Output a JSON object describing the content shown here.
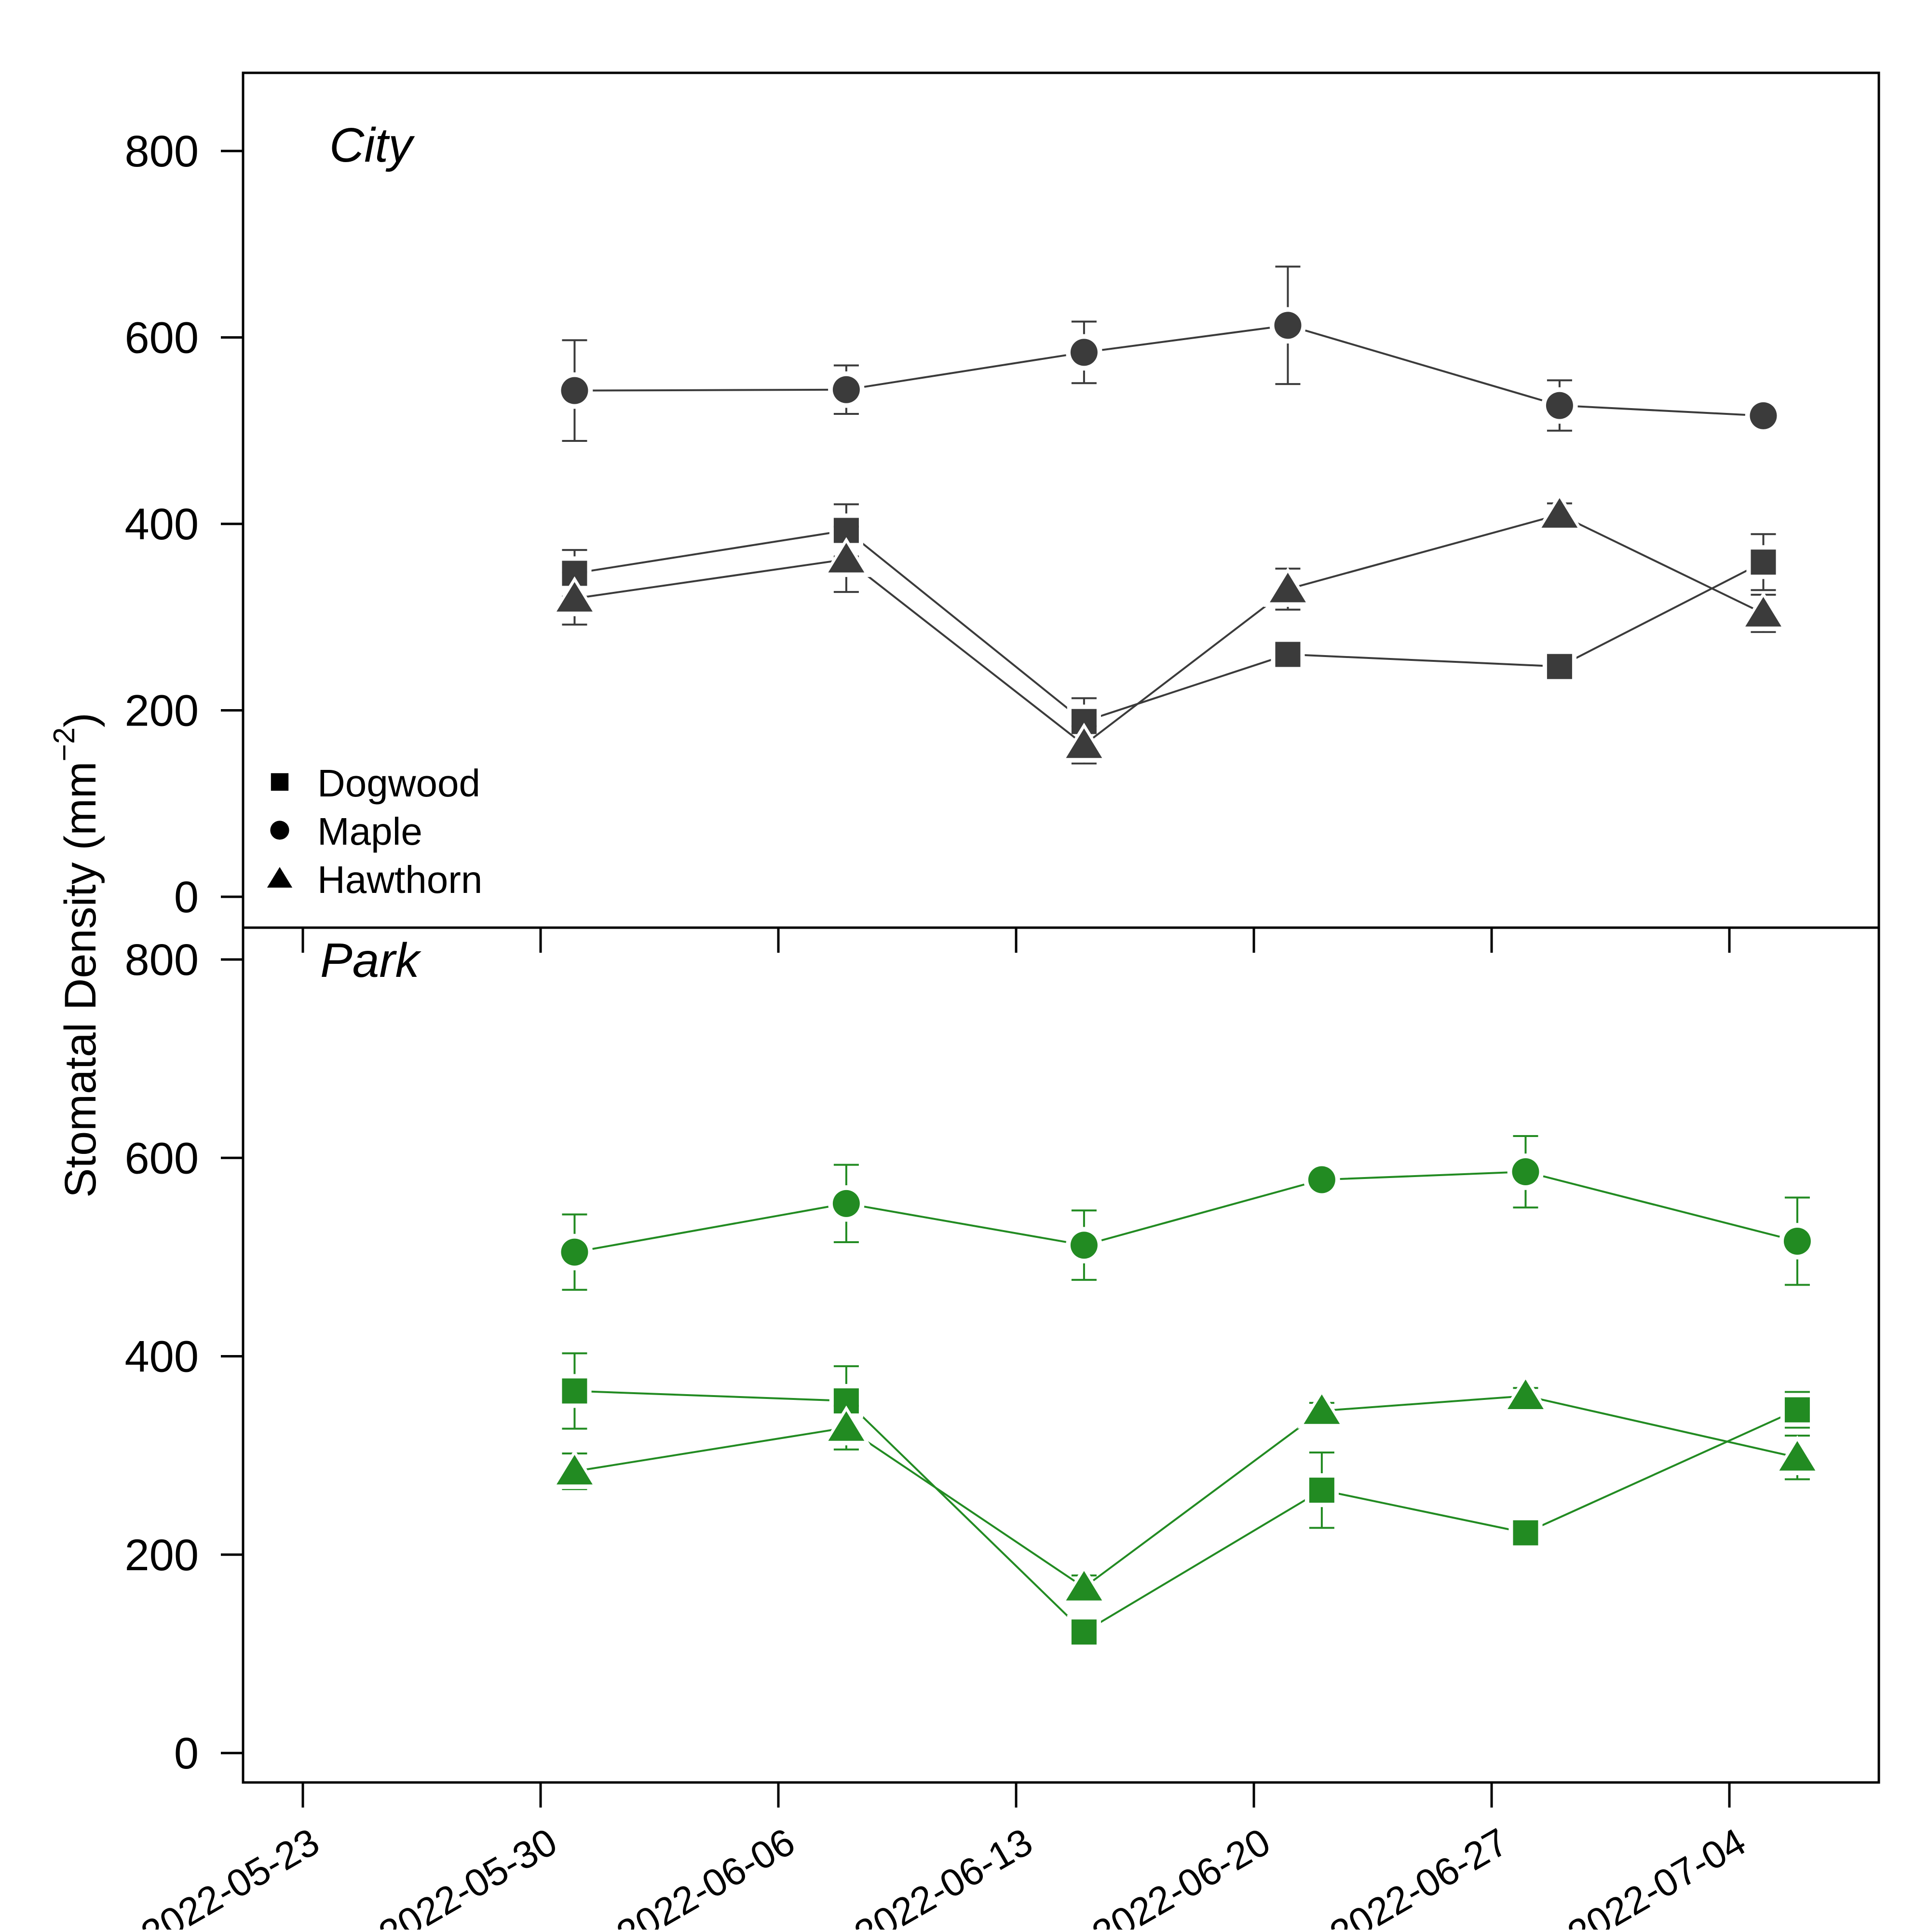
{
  "chart_data": {
    "type": "line",
    "ylabel": "Stomatal Density",
    "ylabel_unit": "mm",
    "ylabel_exponent": "−2",
    "ylim": [
      0,
      800
    ],
    "yticks": [
      "0",
      "200",
      "400",
      "600",
      "800"
    ],
    "xlim": [
      "2022-05-23",
      "2022-07-04"
    ],
    "xticks": [
      "2022-05-23",
      "2022-05-30",
      "2022-06-06",
      "2022-06-13",
      "2022-06-20",
      "2022-06-27",
      "2022-07-04"
    ],
    "legend": {
      "placement": "bottom-left of top panel",
      "entries": [
        {
          "label": "Dogwood",
          "marker": "square"
        },
        {
          "label": "Maple",
          "marker": "circle"
        },
        {
          "label": "Hawthorn",
          "marker": "triangle"
        }
      ]
    },
    "panels": [
      {
        "label": "City",
        "color": "#3b3b3b",
        "series": [
          {
            "name": "Dogwood",
            "marker": "square",
            "points": [
              {
                "date": "2022-05-31",
                "y": 347,
                "err": 25
              },
              {
                "date": "2022-06-08",
                "y": 393,
                "err": 28
              },
              {
                "date": "2022-06-15",
                "y": 188,
                "err": 25
              },
              {
                "date": "2022-06-21",
                "y": 260,
                "err": 0
              },
              {
                "date": "2022-06-29",
                "y": 247,
                "err": 0
              },
              {
                "date": "2022-07-05",
                "y": 359,
                "err": 30
              }
            ]
          },
          {
            "name": "Maple",
            "marker": "circle",
            "points": [
              {
                "date": "2022-05-31",
                "y": 543,
                "err": 54
              },
              {
                "date": "2022-06-08",
                "y": 544,
                "err": 26
              },
              {
                "date": "2022-06-15",
                "y": 584,
                "err": 33
              },
              {
                "date": "2022-06-21",
                "y": 613,
                "err": 63
              },
              {
                "date": "2022-06-29",
                "y": 527,
                "err": 27
              },
              {
                "date": "2022-07-05",
                "y": 516,
                "err": 10
              }
            ]
          },
          {
            "name": "Hawthorn",
            "marker": "triangle",
            "points": [
              {
                "date": "2022-05-31",
                "y": 320,
                "err": 28
              },
              {
                "date": "2022-06-08",
                "y": 362,
                "err": 35
              },
              {
                "date": "2022-06-15",
                "y": 163,
                "err": 20
              },
              {
                "date": "2022-06-21",
                "y": 330,
                "err": 22
              },
              {
                "date": "2022-06-29",
                "y": 410,
                "err": 12
              },
              {
                "date": "2022-07-05",
                "y": 304,
                "err": 20
              }
            ]
          }
        ]
      },
      {
        "label": "Park",
        "color": "#228b22",
        "series": [
          {
            "name": "Dogwood",
            "marker": "square",
            "points": [
              {
                "date": "2022-05-31",
                "y": 365,
                "err": 38
              },
              {
                "date": "2022-06-08",
                "y": 355,
                "err": 35
              },
              {
                "date": "2022-06-15",
                "y": 122,
                "err": 0
              },
              {
                "date": "2022-06-22",
                "y": 265,
                "err": 38
              },
              {
                "date": "2022-06-28",
                "y": 222,
                "err": 0
              },
              {
                "date": "2022-07-06",
                "y": 346,
                "err": 18
              }
            ]
          },
          {
            "name": "Maple",
            "marker": "circle",
            "points": [
              {
                "date": "2022-05-31",
                "y": 505,
                "err": 38
              },
              {
                "date": "2022-06-08",
                "y": 554,
                "err": 39
              },
              {
                "date": "2022-06-15",
                "y": 512,
                "err": 35
              },
              {
                "date": "2022-06-22",
                "y": 578,
                "err": 8
              },
              {
                "date": "2022-06-28",
                "y": 586,
                "err": 36
              },
              {
                "date": "2022-07-06",
                "y": 516,
                "err": 44
              }
            ]
          },
          {
            "name": "Hawthorn",
            "marker": "triangle",
            "points": [
              {
                "date": "2022-05-31",
                "y": 284,
                "err": 18
              },
              {
                "date": "2022-06-08",
                "y": 328,
                "err": 22
              },
              {
                "date": "2022-06-15",
                "y": 167,
                "err": 12
              },
              {
                "date": "2022-06-22",
                "y": 345,
                "err": 8
              },
              {
                "date": "2022-06-28",
                "y": 360,
                "err": 8
              },
              {
                "date": "2022-07-06",
                "y": 298,
                "err": 22
              }
            ]
          }
        ]
      }
    ]
  }
}
